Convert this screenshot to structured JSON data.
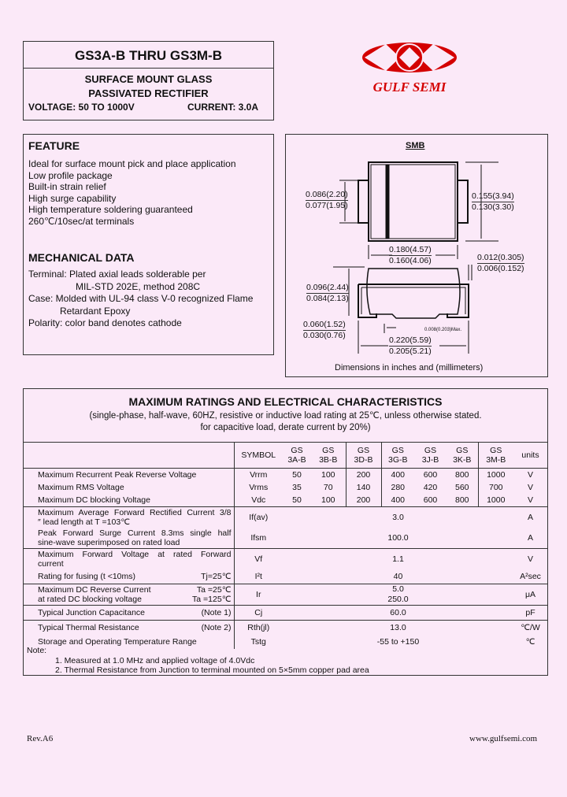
{
  "header": {
    "title": "GS3A-B  THRU  GS3M-B",
    "subtitle1": "SURFACE MOUNT GLASS",
    "subtitle2": "PASSIVATED RECTIFIER",
    "voltage": "VOLTAGE:  50  TO  1000V",
    "current": "CURRENT:  3.0A"
  },
  "logo": {
    "text": "GULF SEMI",
    "color": "#d40000"
  },
  "feature": {
    "title": "FEATURE",
    "items": [
      "Ideal for surface mount pick and place application",
      "Low profile package",
      "Built-in strain relief",
      "High surge capability",
      "High temperature soldering guaranteed",
      "260℃/10sec/at terminals"
    ]
  },
  "mechanical": {
    "title": "MECHANICAL DATA",
    "lines": [
      "Terminal:  Plated axial leads solderable per",
      "MIL-STD 202E, method 208C",
      "Case:  Molded with UL-94 class V-0 recognized Flame",
      "Retardant Epoxy",
      "Polarity:  color band denotes cathode"
    ]
  },
  "diagram": {
    "package": "SMB",
    "dims": [
      "0.086(2.20)",
      "0.077(1.95)",
      "0.155(3.94)",
      "0.130(3.30)",
      "0.180(4.57)",
      "0.160(4.06)",
      "0.012(0.305)",
      "0.006(0.152)",
      "0.096(2.44)",
      "0.084(2.13)",
      "0.060(1.52)",
      "0.030(0.76)",
      "0.008(0.203)Max.",
      "0.220(5.59)",
      "0.205(5.21)"
    ],
    "caption": "Dimensions in inches and (millimeters)"
  },
  "ratings": {
    "title": "MAXIMUM RATINGS AND ELECTRICAL CHARACTERISTICS",
    "sub1": "(single-phase, half-wave, 60HZ, resistive or inductive load rating at 25℃, unless otherwise stated.",
    "sub2": "for capacitive load, derate current by 20%)",
    "symbol_header": "SYMBOL",
    "units_header": "units",
    "parts": [
      [
        "GS",
        "3A-B"
      ],
      [
        "GS",
        "3B-B"
      ],
      [
        "GS",
        "3D-B"
      ],
      [
        "GS",
        "3G-B"
      ],
      [
        "GS",
        "3J-B"
      ],
      [
        "GS",
        "3K-B"
      ],
      [
        "GS",
        "3M-B"
      ]
    ],
    "voltage_rows": [
      {
        "desc": "Maximum Recurrent Peak Reverse Voltage",
        "sym": "Vrrm",
        "vals": [
          "50",
          "100",
          "200",
          "400",
          "600",
          "800",
          "1000"
        ],
        "unit": "V"
      },
      {
        "desc": "Maximum RMS Voltage",
        "sym": "Vrms",
        "vals": [
          "35",
          "70",
          "140",
          "280",
          "420",
          "560",
          "700"
        ],
        "unit": "V"
      },
      {
        "desc": "Maximum DC blocking Voltage",
        "sym": "Vdc",
        "vals": [
          "50",
          "100",
          "200",
          "400",
          "600",
          "800",
          "1000"
        ],
        "unit": "V"
      }
    ],
    "rows": [
      {
        "desc1": "Maximum Average Forward Rectified Current 3/8",
        "desc2": "″ lead length at T  =103℃",
        "sym": "If(av)",
        "val": "3.0",
        "unit": "A"
      },
      {
        "desc1": "Peak Forward Surge Current 8.3ms single half",
        "desc2": "sine-wave superimposed on rated load",
        "sym": "Ifsm",
        "val": "100.0",
        "unit": "A"
      },
      {
        "desc1": "Maximum Forward Voltage at rated Forward",
        "desc2": "current",
        "sym": "Vf",
        "val": "1.1",
        "unit": "V"
      },
      {
        "desc1": "Rating for fusing (t <10ms)",
        "cond": "Tj=25℃",
        "sym": "I²t",
        "val": "40",
        "unit": "A²sec"
      },
      {
        "desc1": "Maximum DC Reverse Current",
        "cond1": "Ta =25℃",
        "desc2": "at rated DC blocking voltage",
        "cond2": "Ta =125℃",
        "sym": "Ir",
        "val1": "5.0",
        "val2": "250.0",
        "unit": "μA"
      },
      {
        "desc1": "Typical Junction Capacitance",
        "cond": "(Note 1)",
        "sym": "Cj",
        "val": "60.0",
        "unit": "pF"
      },
      {
        "desc1": "Typical Thermal Resistance",
        "cond": "(Note 2)",
        "sym": "Rth(jl)",
        "val": "13.0",
        "unit": "℃/W"
      },
      {
        "desc1": "Storage and Operating Temperature Range",
        "sym": "Tstg",
        "val": "-55 to +150",
        "unit": "℃"
      }
    ],
    "note_label": "Note:",
    "notes": [
      "1.  Measured at 1.0 MHz and applied voltage of 4.0Vdc",
      "2.  Thermal Resistance from Junction to terminal mounted on 5×5mm copper pad area"
    ]
  },
  "footer": {
    "rev": "Rev.A6",
    "website": "www.gulfsemi.com"
  }
}
